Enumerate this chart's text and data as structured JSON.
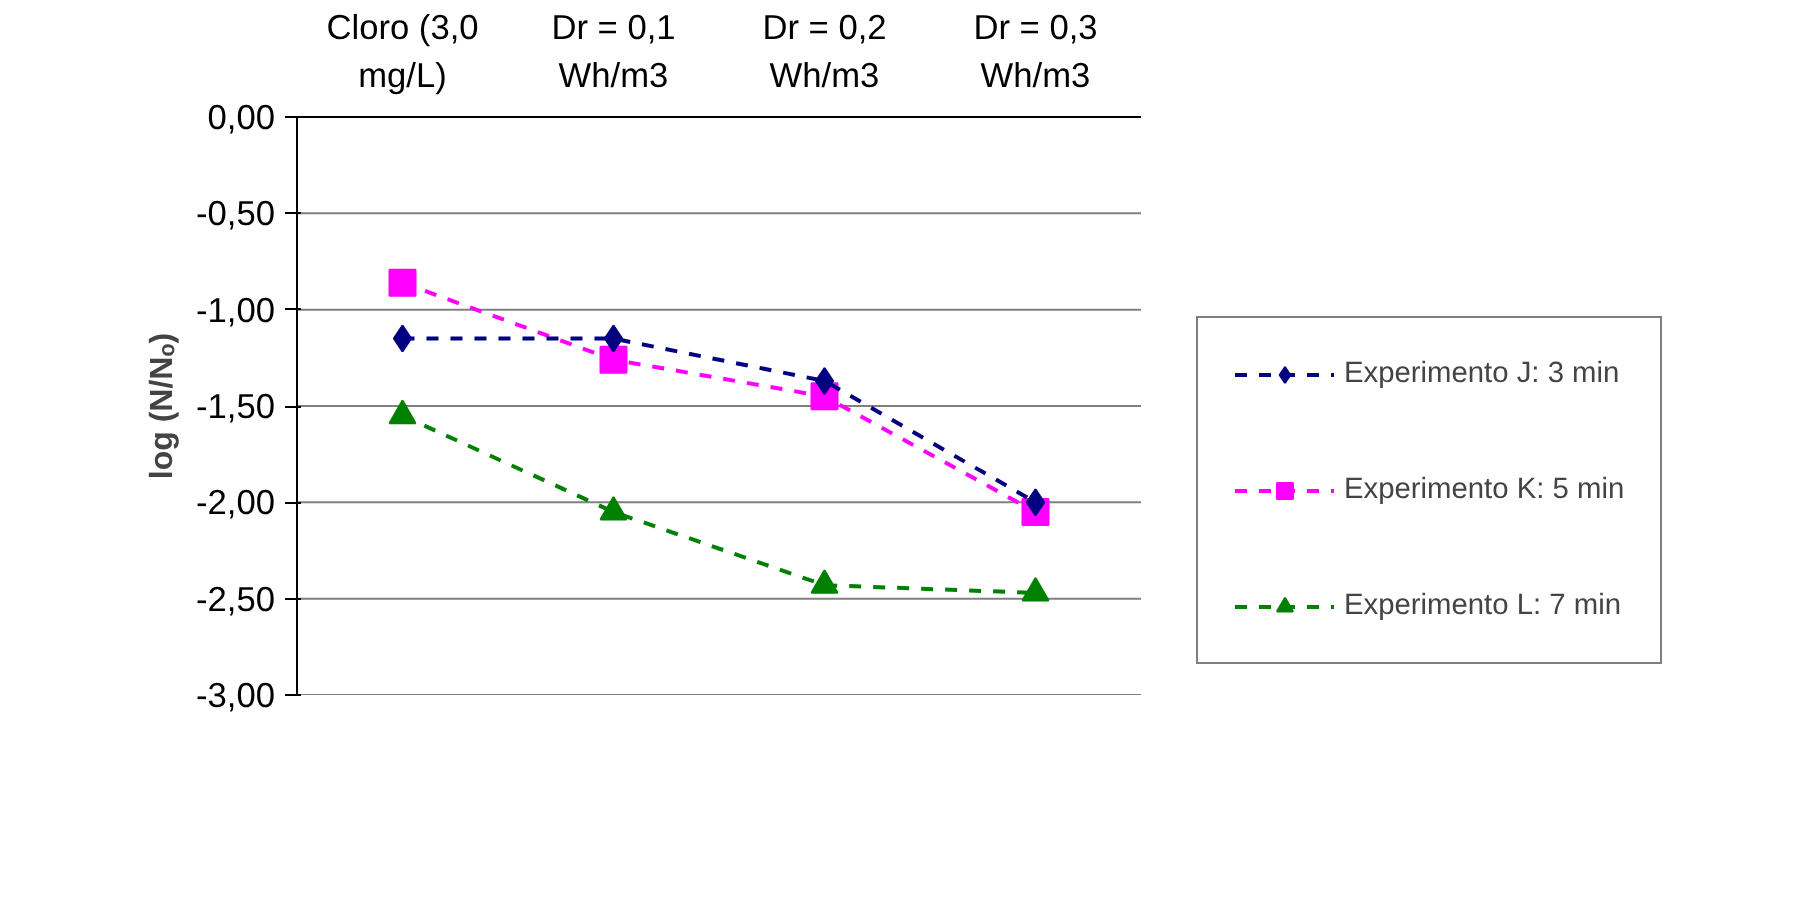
{
  "chart_data": {
    "type": "line",
    "ylabel": "log (N/Nₒ)",
    "categories": [
      "Cloro (3,0\nmg/L)",
      "Dr = 0,1\nWh/m3",
      "Dr = 0,2\nWh/m3",
      "Dr = 0,3\nWh/m3"
    ],
    "series": [
      {
        "name": "Experimento J: 3 min",
        "color": "#000080",
        "marker": "diamond",
        "values": [
          -1.15,
          -1.15,
          -1.37,
          -2.0
        ]
      },
      {
        "name": "Experimento K: 5 min",
        "color": "#ff00ff",
        "marker": "square",
        "values": [
          -0.86,
          -1.26,
          -1.45,
          -2.05
        ]
      },
      {
        "name": "Experimento L: 7 min",
        "color": "#008000",
        "marker": "triangle",
        "values": [
          -1.55,
          -2.05,
          -2.43,
          -2.47
        ]
      }
    ],
    "ylim": [
      -3,
      0
    ],
    "yticks": [
      {
        "value": 0,
        "label": "0,00"
      },
      {
        "value": -0.5,
        "label": "-0,50"
      },
      {
        "value": -1,
        "label": "-1,00"
      },
      {
        "value": -1.5,
        "label": "-1,50"
      },
      {
        "value": -2,
        "label": "-2,00"
      },
      {
        "value": -2.5,
        "label": "-2,50"
      },
      {
        "value": -3,
        "label": "-3,00"
      }
    ],
    "grid": "y",
    "legend": "right",
    "line_style": "dashed"
  }
}
